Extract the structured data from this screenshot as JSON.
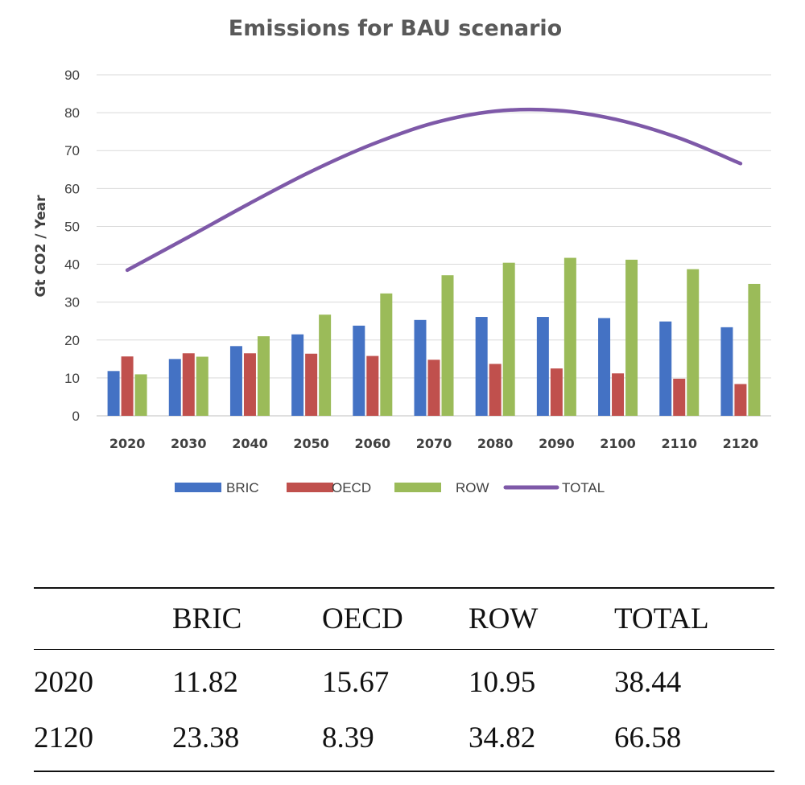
{
  "chart_data": {
    "type": "bar",
    "title": "Emissions for BAU scenario",
    "ylabel": "Gt CO2 / Year",
    "xlabel": "",
    "ylim": [
      0,
      90
    ],
    "y_ticks": [
      0,
      10,
      20,
      30,
      40,
      50,
      60,
      70,
      80,
      90
    ],
    "grid": true,
    "legend_position": "bottom",
    "categories": [
      "2020",
      "2030",
      "2040",
      "2050",
      "2060",
      "2070",
      "2080",
      "2090",
      "2100",
      "2110",
      "2120"
    ],
    "series": [
      {
        "name": "BRIC",
        "type": "bar",
        "color": "#4472C4",
        "values": [
          11.82,
          15.0,
          18.4,
          21.5,
          23.8,
          25.3,
          26.1,
          26.1,
          25.8,
          24.9,
          23.38
        ]
      },
      {
        "name": "OECD",
        "type": "bar",
        "color": "#C0504D",
        "values": [
          15.67,
          16.5,
          16.5,
          16.4,
          15.8,
          14.8,
          13.7,
          12.5,
          11.2,
          9.8,
          8.39
        ]
      },
      {
        "name": "ROW",
        "type": "bar",
        "color": "#9BBB59",
        "values": [
          10.95,
          15.6,
          21.0,
          26.7,
          32.3,
          37.1,
          40.4,
          41.7,
          41.2,
          38.7,
          34.82
        ]
      },
      {
        "name": "TOTAL",
        "type": "line",
        "color": "#7E59A8",
        "values": [
          38.44,
          47.2,
          56.1,
          64.5,
          71.7,
          77.3,
          80.4,
          80.6,
          78.1,
          73.3,
          66.58
        ]
      }
    ]
  },
  "table": {
    "headers": [
      "",
      "BRIC",
      "OECD",
      "ROW",
      "TOTAL"
    ],
    "rows": [
      [
        "2020",
        "11.82",
        "15.67",
        "10.95",
        "38.44"
      ],
      [
        "2120",
        "23.38",
        "8.39",
        "34.82",
        "66.58"
      ]
    ]
  }
}
